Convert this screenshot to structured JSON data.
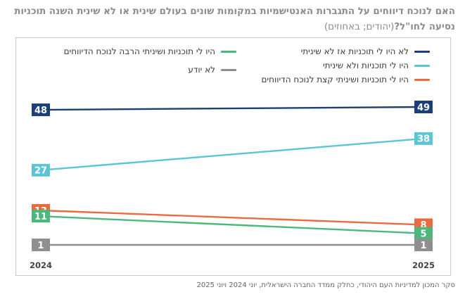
{
  "title_main": "האם לנוכח דיווחים על התגברות האנטישמיות במקומות שונים בעולם שינית או לא שינית השנה תוכניות נסיעה לחו\"ל?",
  "title_unit": "(יהודים; באחוזים)",
  "source": "סקר המכון למדיניות העם היהודי, כחלק ממדד החברה הישראלית, יוני 2024 ויוני 2025",
  "colors": {
    "navy": "#1c3f7a",
    "lightblue": "#5bc5d6",
    "orange": "#ea6b3f",
    "green": "#4db87b",
    "gray": "#8f8f8f"
  },
  "chart_data": {
    "type": "line",
    "x": [
      "2024",
      "2025"
    ],
    "ylim": [
      0,
      55
    ],
    "legend_position": "top",
    "grid": false,
    "series": [
      {
        "name": "לא היו לי תוכניות אז לא שיניתי",
        "values": [
          48,
          49
        ],
        "color": "#1c3f7a"
      },
      {
        "name": "היו לי תוכניות ולא שיניתי",
        "values": [
          27,
          38
        ],
        "color": "#5bc5d6"
      },
      {
        "name": "היו לי תוכניות ושיניתי קצת לנוכח הדיווחים",
        "values": [
          13,
          8
        ],
        "color": "#ea6b3f"
      },
      {
        "name": "היו לי תוכניות ושיניתי הרבה לנוכח הדיווחים",
        "values": [
          11,
          5
        ],
        "color": "#4db87b"
      },
      {
        "name": "לא יודע",
        "values": [
          1,
          1
        ],
        "color": "#8f8f8f"
      }
    ]
  }
}
